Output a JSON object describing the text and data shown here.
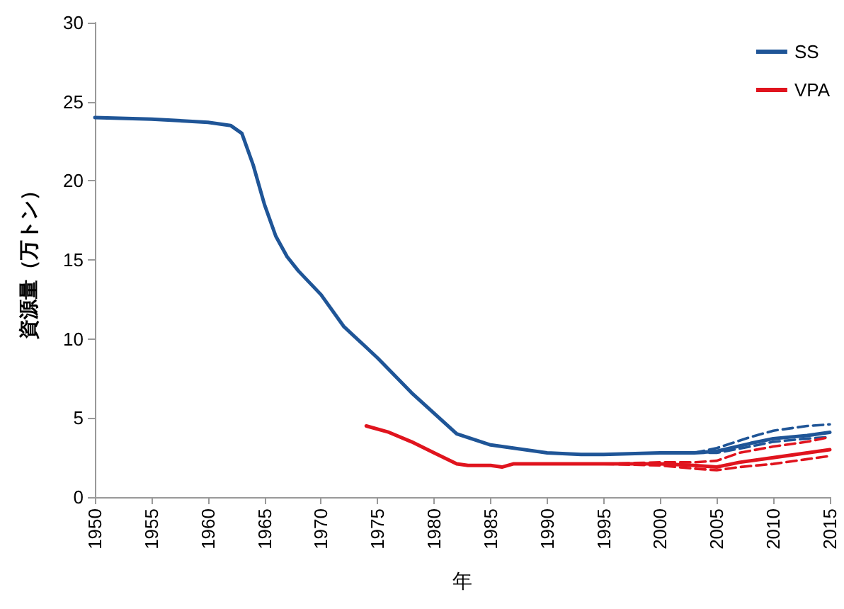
{
  "chart_data": {
    "type": "line",
    "xlabel": "年",
    "ylabel": "資源量（万トン）",
    "xlim": [
      1950,
      2015
    ],
    "xticks": [
      1950,
      1955,
      1960,
      1965,
      1970,
      1975,
      1980,
      1985,
      1990,
      1995,
      2000,
      2005,
      2010,
      2015
    ],
    "ylim": [
      0,
      30
    ],
    "yticks": [
      0,
      5,
      10,
      15,
      20,
      25,
      30
    ],
    "grid": false,
    "legend": "top right",
    "marker": "none",
    "line_style": "solid",
    "series": [
      {
        "name": "SS",
        "color": "#1f5597",
        "x": [
          1950,
          1955,
          1960,
          1962,
          1963,
          1964,
          1965,
          1966,
          1967,
          1968,
          1970,
          1972,
          1975,
          1978,
          1980,
          1982,
          1985,
          1990,
          1993,
          1995,
          2000,
          2003,
          2005,
          2008,
          2010,
          2013,
          2015
        ],
        "values": [
          24.0,
          23.9,
          23.7,
          23.5,
          23.0,
          21.0,
          18.5,
          16.5,
          15.2,
          14.3,
          12.8,
          10.8,
          8.8,
          6.6,
          5.3,
          4.0,
          3.3,
          2.8,
          2.7,
          2.7,
          2.8,
          2.8,
          2.9,
          3.4,
          3.7,
          3.9,
          4.1
        ]
      },
      {
        "color": "#1f5597",
        "line_style": "dashed",
        "x": [
          2003,
          2005,
          2008,
          2010,
          2013,
          2015
        ],
        "values": [
          2.8,
          2.8,
          3.2,
          3.5,
          3.7,
          3.8
        ]
      },
      {
        "color": "#1f5597",
        "line_style": "dashed",
        "x": [
          2003,
          2005,
          2008,
          2010,
          2013,
          2015
        ],
        "values": [
          2.8,
          3.1,
          3.8,
          4.2,
          4.5,
          4.6
        ]
      },
      {
        "name": "VPA",
        "color": "#e0141e",
        "x": [
          1974,
          1976,
          1978,
          1980,
          1982,
          1983,
          1985,
          1986,
          1987,
          1990,
          1995,
          2000,
          2003,
          2005,
          2007,
          2010,
          2013,
          2015
        ],
        "values": [
          4.5,
          4.1,
          3.5,
          2.8,
          2.1,
          2.0,
          2.0,
          1.9,
          2.1,
          2.1,
          2.1,
          2.1,
          2.0,
          1.9,
          2.2,
          2.5,
          2.8,
          3.0
        ]
      },
      {
        "color": "#e0141e",
        "line_style": "dashed",
        "x": [
          1995,
          2000,
          2003,
          2005,
          2007,
          2010,
          2013,
          2015
        ],
        "values": [
          2.1,
          2.0,
          1.8,
          1.7,
          1.9,
          2.1,
          2.4,
          2.6
        ]
      },
      {
        "color": "#e0141e",
        "line_style": "dashed",
        "x": [
          1995,
          2000,
          2003,
          2005,
          2007,
          2010,
          2013,
          2015
        ],
        "values": [
          2.1,
          2.2,
          2.2,
          2.3,
          2.8,
          3.2,
          3.5,
          3.8
        ]
      }
    ]
  }
}
